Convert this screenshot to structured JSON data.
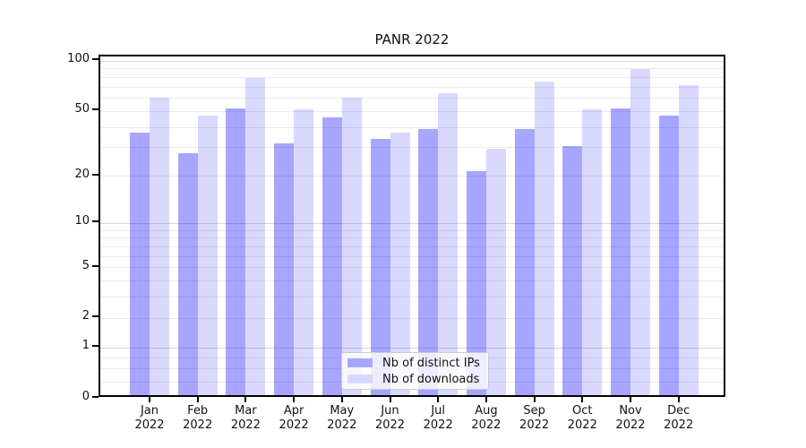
{
  "title": "PANR 2022",
  "chart_data": {
    "type": "bar",
    "title": "PANR 2022",
    "yscale": "log1p",
    "grid": true,
    "legend_position": "lower center",
    "categories": [
      "Jan",
      "Feb",
      "Mar",
      "Apr",
      "May",
      "Jun",
      "Jul",
      "Aug",
      "Sep",
      "Oct",
      "Nov",
      "Dec"
    ],
    "year_label": "2022",
    "series": [
      {
        "name": "Nb of distinct IPs",
        "color": "rgba(0,0,255,0.35)",
        "legend_color": "#a6a6ff",
        "values": [
          36,
          27,
          51,
          31,
          45,
          33,
          38,
          21,
          38,
          30,
          51,
          46
        ]
      },
      {
        "name": "Nb of downloads",
        "color": "rgba(0,0,255,0.15)",
        "legend_color": "#d9d9ff",
        "values": [
          59,
          46,
          78,
          50,
          59,
          36,
          63,
          29,
          74,
          50,
          88,
          70
        ]
      }
    ],
    "ylim": [
      0,
      107
    ],
    "yticks": [
      100,
      50,
      20,
      10,
      5,
      2,
      1,
      0
    ],
    "major_gridline_values": [
      1,
      10,
      100
    ],
    "minor_gridline_values": [
      0.25,
      0.5,
      0.75,
      2,
      3,
      4,
      5,
      6,
      7,
      8,
      9,
      20,
      30,
      40,
      50,
      60,
      70,
      80,
      90
    ],
    "gridline_color_major": "#d6d6d6",
    "gridline_color_minor": "#ececec",
    "axis_color": "#000000",
    "text_color": "#111111"
  }
}
